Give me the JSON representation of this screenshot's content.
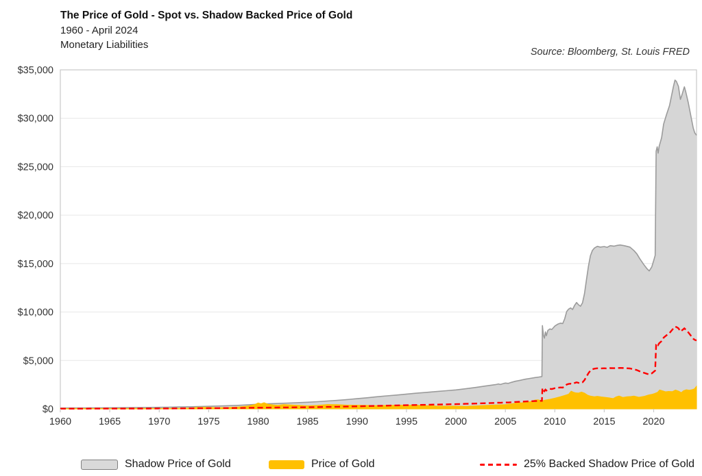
{
  "header": {
    "title": "The Price of Gold - Spot vs. Shadow Backed Price of Gold",
    "period": "1960 - April 2024",
    "context": "Monetary Liabilities",
    "source": "Source: Bloomberg, St. Louis FRED"
  },
  "legend": {
    "items": [
      {
        "label": "Shadow Price of Gold",
        "swatch": "gray-area"
      },
      {
        "label": "Price of Gold",
        "swatch": "gold-area"
      },
      {
        "label": "25% Backed Shadow Price of Gold",
        "swatch": "red-dashed-line"
      }
    ]
  },
  "chart_data": {
    "type": "area",
    "title": "The Price of Gold - Spot vs. Shadow Backed Price of Gold",
    "subtitle": "1960 - April 2024, Monetary Liabilities",
    "source": "Source: Bloomberg, St. Louis FRED",
    "xlabel": "",
    "ylabel": "",
    "x_range": [
      1960,
      2024.33
    ],
    "y_range": [
      0,
      35000
    ],
    "x_ticks": [
      1960,
      1965,
      1970,
      1975,
      1980,
      1985,
      1990,
      1995,
      2000,
      2005,
      2010,
      2015,
      2020
    ],
    "x_tick_labels": [
      "1960",
      "1965",
      "1970",
      "1975",
      "1980",
      "1985",
      "1990",
      "1995",
      "2000",
      "2005",
      "2010",
      "2015",
      "2020"
    ],
    "y_ticks": [
      0,
      5000,
      10000,
      15000,
      20000,
      25000,
      30000,
      35000
    ],
    "y_tick_labels": [
      "$0",
      "$5,000",
      "$10,000",
      "$15,000",
      "$20,000",
      "$25,000",
      "$30,000",
      "$35,000"
    ],
    "grid": "horizontal",
    "legend_position": "bottom",
    "colors": {
      "shadow_fill": "#D6D6D6",
      "shadow_stroke": "#9B9B9B",
      "gold_fill": "#FFC000",
      "red_line": "#FF0000",
      "gridline": "#E7E7E7",
      "plot_border": "#C9C9C9",
      "tick_text": "#333333"
    },
    "series": [
      {
        "name": "Shadow Price of Gold",
        "render": "area",
        "points": [
          [
            1960,
            85
          ],
          [
            1961,
            90
          ],
          [
            1962,
            95
          ],
          [
            1963,
            100
          ],
          [
            1964,
            107
          ],
          [
            1965,
            115
          ],
          [
            1966,
            122
          ],
          [
            1967,
            130
          ],
          [
            1968,
            140
          ],
          [
            1969,
            150
          ],
          [
            1970,
            162
          ],
          [
            1971,
            178
          ],
          [
            1972,
            196
          ],
          [
            1973,
            218
          ],
          [
            1974,
            245
          ],
          [
            1975,
            272
          ],
          [
            1976,
            300
          ],
          [
            1977,
            333
          ],
          [
            1978,
            370
          ],
          [
            1979,
            420
          ],
          [
            1980,
            478
          ],
          [
            1981,
            520
          ],
          [
            1982,
            558
          ],
          [
            1983,
            598
          ],
          [
            1984,
            640
          ],
          [
            1985,
            688
          ],
          [
            1986,
            742
          ],
          [
            1987,
            810
          ],
          [
            1988,
            880
          ],
          [
            1989,
            962
          ],
          [
            1990,
            1050
          ],
          [
            1991,
            1148
          ],
          [
            1992,
            1250
          ],
          [
            1993,
            1342
          ],
          [
            1994,
            1430
          ],
          [
            1995,
            1525
          ],
          [
            1996,
            1620
          ],
          [
            1997,
            1705
          ],
          [
            1998,
            1790
          ],
          [
            1999,
            1875
          ],
          [
            2000,
            1960
          ],
          [
            2001,
            2080
          ],
          [
            2002,
            2215
          ],
          [
            2003,
            2360
          ],
          [
            2004,
            2500
          ],
          [
            2004.3,
            2575
          ],
          [
            2004.5,
            2520
          ],
          [
            2004.8,
            2615
          ],
          [
            2005,
            2665
          ],
          [
            2005.3,
            2630
          ],
          [
            2005.6,
            2735
          ],
          [
            2006,
            2850
          ],
          [
            2006.5,
            2950
          ],
          [
            2007,
            3060
          ],
          [
            2007.5,
            3150
          ],
          [
            2008,
            3230
          ],
          [
            2008.4,
            3290
          ],
          [
            2008.7,
            3340
          ],
          [
            2008.75,
            8600
          ],
          [
            2008.85,
            7600
          ],
          [
            2008.95,
            7300
          ],
          [
            2009.05,
            7950
          ],
          [
            2009.15,
            7550
          ],
          [
            2009.3,
            8100
          ],
          [
            2009.5,
            8250
          ],
          [
            2009.7,
            8200
          ],
          [
            2010,
            8550
          ],
          [
            2010.3,
            8750
          ],
          [
            2010.6,
            8850
          ],
          [
            2010.8,
            8800
          ],
          [
            2011,
            9300
          ],
          [
            2011.2,
            10050
          ],
          [
            2011.4,
            10300
          ],
          [
            2011.6,
            10420
          ],
          [
            2011.8,
            10260
          ],
          [
            2012,
            10680
          ],
          [
            2012.2,
            10980
          ],
          [
            2012.4,
            10750
          ],
          [
            2012.6,
            10600
          ],
          [
            2012.8,
            10950
          ],
          [
            2013,
            11900
          ],
          [
            2013.2,
            13300
          ],
          [
            2013.4,
            14700
          ],
          [
            2013.6,
            15800
          ],
          [
            2013.8,
            16350
          ],
          [
            2014,
            16600
          ],
          [
            2014.3,
            16780
          ],
          [
            2014.6,
            16700
          ],
          [
            2015,
            16760
          ],
          [
            2015.3,
            16680
          ],
          [
            2015.6,
            16850
          ],
          [
            2016,
            16800
          ],
          [
            2016.3,
            16880
          ],
          [
            2016.6,
            16920
          ],
          [
            2017,
            16850
          ],
          [
            2017.3,
            16780
          ],
          [
            2017.6,
            16700
          ],
          [
            2018,
            16350
          ],
          [
            2018.3,
            16000
          ],
          [
            2018.6,
            15500
          ],
          [
            2019,
            14900
          ],
          [
            2019.3,
            14500
          ],
          [
            2019.55,
            14240
          ],
          [
            2019.8,
            14650
          ],
          [
            2020,
            15300
          ],
          [
            2020.15,
            15850
          ],
          [
            2020.25,
            26600
          ],
          [
            2020.35,
            27050
          ],
          [
            2020.45,
            26400
          ],
          [
            2020.55,
            27100
          ],
          [
            2020.8,
            28000
          ],
          [
            2021,
            29400
          ],
          [
            2021.3,
            30400
          ],
          [
            2021.6,
            31300
          ],
          [
            2022,
            33300
          ],
          [
            2022.15,
            33950
          ],
          [
            2022.3,
            33800
          ],
          [
            2022.5,
            33300
          ],
          [
            2022.7,
            31950
          ],
          [
            2022.85,
            32400
          ],
          [
            2023,
            32900
          ],
          [
            2023.1,
            33250
          ],
          [
            2023.25,
            32700
          ],
          [
            2023.5,
            31600
          ],
          [
            2023.75,
            30300
          ],
          [
            2024,
            29000
          ],
          [
            2024.15,
            28500
          ],
          [
            2024.33,
            28250
          ]
        ]
      },
      {
        "name": "Price of Gold",
        "render": "area",
        "points": [
          [
            1960,
            35
          ],
          [
            1965,
            35
          ],
          [
            1968,
            39
          ],
          [
            1970,
            36
          ],
          [
            1971,
            41
          ],
          [
            1972,
            55
          ],
          [
            1973,
            95
          ],
          [
            1974,
            165
          ],
          [
            1975,
            160
          ],
          [
            1976,
            125
          ],
          [
            1977,
            150
          ],
          [
            1978,
            195
          ],
          [
            1979,
            300
          ],
          [
            1979.7,
            460
          ],
          [
            1980,
            615
          ],
          [
            1980.3,
            530
          ],
          [
            1980.6,
            640
          ],
          [
            1981,
            480
          ],
          [
            1981.5,
            420
          ],
          [
            1982,
            370
          ],
          [
            1982.6,
            450
          ],
          [
            1983,
            425
          ],
          [
            1983.5,
            395
          ],
          [
            1984,
            370
          ],
          [
            1985,
            320
          ],
          [
            1986,
            360
          ],
          [
            1987,
            450
          ],
          [
            1988,
            435
          ],
          [
            1989,
            390
          ],
          [
            1990,
            385
          ],
          [
            1991,
            360
          ],
          [
            1992,
            340
          ],
          [
            1993,
            360
          ],
          [
            1994,
            382
          ],
          [
            1995,
            386
          ],
          [
            1996,
            390
          ],
          [
            1997,
            335
          ],
          [
            1998,
            293
          ],
          [
            1999,
            282
          ],
          [
            2000,
            280
          ],
          [
            2001,
            272
          ],
          [
            2002,
            312
          ],
          [
            2003,
            362
          ],
          [
            2004,
            410
          ],
          [
            2005,
            445
          ],
          [
            2005.5,
            500
          ],
          [
            2006,
            590
          ],
          [
            2006.3,
            640
          ],
          [
            2006.6,
            615
          ],
          [
            2007,
            680
          ],
          [
            2007.5,
            740
          ],
          [
            2008,
            910
          ],
          [
            2008.3,
            930
          ],
          [
            2008.7,
            820
          ],
          [
            2009,
            900
          ],
          [
            2009.5,
            990
          ],
          [
            2010,
            1110
          ],
          [
            2010.5,
            1240
          ],
          [
            2011,
            1390
          ],
          [
            2011.4,
            1520
          ],
          [
            2011.65,
            1830
          ],
          [
            2011.9,
            1720
          ],
          [
            2012.1,
            1660
          ],
          [
            2012.4,
            1630
          ],
          [
            2012.7,
            1740
          ],
          [
            2013,
            1630
          ],
          [
            2013.3,
            1430
          ],
          [
            2013.6,
            1320
          ],
          [
            2014,
            1260
          ],
          [
            2014.3,
            1300
          ],
          [
            2014.7,
            1240
          ],
          [
            2015,
            1200
          ],
          [
            2015.5,
            1140
          ],
          [
            2015.9,
            1070
          ],
          [
            2016.2,
            1240
          ],
          [
            2016.5,
            1330
          ],
          [
            2016.9,
            1180
          ],
          [
            2017.3,
            1250
          ],
          [
            2017.7,
            1280
          ],
          [
            2018,
            1330
          ],
          [
            2018.5,
            1200
          ],
          [
            2019,
            1290
          ],
          [
            2019.5,
            1440
          ],
          [
            2019.8,
            1500
          ],
          [
            2020.1,
            1590
          ],
          [
            2020.4,
            1720
          ],
          [
            2020.6,
            1960
          ],
          [
            2020.9,
            1870
          ],
          [
            2021.2,
            1770
          ],
          [
            2021.5,
            1800
          ],
          [
            2021.9,
            1790
          ],
          [
            2022.2,
            1950
          ],
          [
            2022.5,
            1840
          ],
          [
            2022.8,
            1680
          ],
          [
            2023,
            1870
          ],
          [
            2023.3,
            1980
          ],
          [
            2023.6,
            1930
          ],
          [
            2023.9,
            1990
          ],
          [
            2024.1,
            2060
          ],
          [
            2024.33,
            2330
          ]
        ]
      },
      {
        "name": "25% Backed Shadow Price of Gold",
        "render": "dashed-line",
        "derived_from": "Shadow Price of Gold",
        "multiplier": 0.25
      }
    ]
  }
}
